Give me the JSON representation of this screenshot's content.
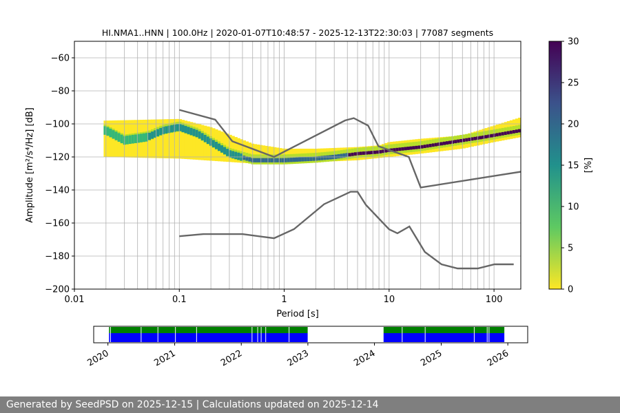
{
  "footer": "Generated by SeedPSD on 2025-12-15 | Calculations updated on 2025-12-14",
  "chart_data": {
    "type": "heatmap",
    "title": "HI.NMA1..HNN | 100.0Hz | 2020-01-07T10:48:57 - 2025-12-13T22:30:03 | 77087 segments",
    "xlabel": "Period [s]",
    "ylabel": "Amplitude [m²/s⁴/Hz] [dB]",
    "xscale": "log",
    "xlim": [
      0.01,
      180
    ],
    "ylim": [
      -200,
      -50
    ],
    "xticks": [
      0.01,
      0.1,
      1,
      10,
      100
    ],
    "xtick_labels": [
      "0.01",
      "0.1",
      "1",
      "10",
      "100"
    ],
    "yticks": [
      -60,
      -80,
      -100,
      -120,
      -140,
      -160,
      -180,
      -200
    ],
    "ytick_labels": [
      "−60",
      "−80",
      "−100",
      "−120",
      "−140",
      "−160",
      "−180",
      "−200"
    ],
    "grid": true,
    "colormap": "viridis_r",
    "colorbar": {
      "label": "[%]",
      "range": [
        0,
        30
      ],
      "ticks": [
        0,
        5,
        10,
        15,
        20,
        25,
        30
      ],
      "tick_labels": [
        "0",
        "5",
        "10",
        "15",
        "20",
        "25",
        "30"
      ]
    },
    "psd_mode": {
      "period": [
        0.02,
        0.03,
        0.05,
        0.07,
        0.1,
        0.15,
        0.2,
        0.3,
        0.5,
        0.8,
        1,
        2,
        3,
        5,
        8,
        10,
        20,
        40,
        80,
        180
      ],
      "db": [
        -104,
        -110,
        -108,
        -104,
        -102,
        -106,
        -111,
        -118,
        -122,
        -122,
        -122,
        -121,
        -120,
        -118,
        -117,
        -116,
        -114,
        -111,
        -108,
        -104
      ]
    },
    "psd_lower": {
      "period": [
        0.02,
        0.1,
        0.2,
        0.5,
        1,
        2,
        5,
        8,
        10,
        20,
        50,
        100,
        180
      ],
      "db": [
        -98,
        -97,
        -102,
        -112,
        -115,
        -115,
        -114,
        -113,
        -111,
        -109,
        -107,
        -101,
        -96
      ]
    },
    "psd_upper": {
      "period": [
        0.02,
        0.1,
        0.5,
        1,
        5,
        10,
        20,
        50,
        100,
        180
      ],
      "db": [
        -120,
        -121,
        -124,
        -124,
        -122,
        -120,
        -118,
        -115,
        -111,
        -108
      ]
    },
    "nhnm": {
      "period": [
        0.1,
        0.22,
        0.32,
        0.8,
        3.8,
        4.6,
        6.3,
        7.9,
        15.4,
        20,
        354.8
      ],
      "db": [
        -91.5,
        -97.4,
        -110.5,
        -120,
        -97.9,
        -96.5,
        -101,
        -113.5,
        -120,
        -138.5,
        -126
      ]
    },
    "nlnm": {
      "period": [
        0.1,
        0.17,
        0.4,
        0.8,
        1.24,
        2.4,
        4.3,
        5,
        6,
        10,
        12,
        15.6,
        21.9,
        31.6,
        45,
        70,
        101,
        154
      ],
      "db": [
        -168,
        -166.7,
        -166.7,
        -169.2,
        -163.7,
        -148.6,
        -141.1,
        -141.1,
        -149,
        -163.8,
        -166.2,
        -162.1,
        -177.5,
        -185,
        -187.5,
        -187.5,
        -185,
        -185
      ]
    },
    "timeline": {
      "xlim": [
        "2019-10-15",
        "2026-04-20"
      ],
      "xtick_labels": [
        "2020",
        "2021",
        "2022",
        "2023",
        "2024",
        "2025",
        "2026"
      ],
      "coverage": [
        [
          "2020-01-07",
          "2022-12-31"
        ],
        [
          "2024-02-20",
          "2025-12-13"
        ]
      ],
      "gaps": [
        "2020-01-15",
        "2020-07-01",
        "2020-10-01",
        "2021-01-05",
        "2021-05-01",
        "2022-03-01",
        "2022-04-01",
        "2022-04-20",
        "2022-05-15",
        "2022-09-20",
        "2024-06-01",
        "2024-10-05",
        "2025-07-01",
        "2025-09-10",
        "2025-09-20"
      ]
    }
  }
}
